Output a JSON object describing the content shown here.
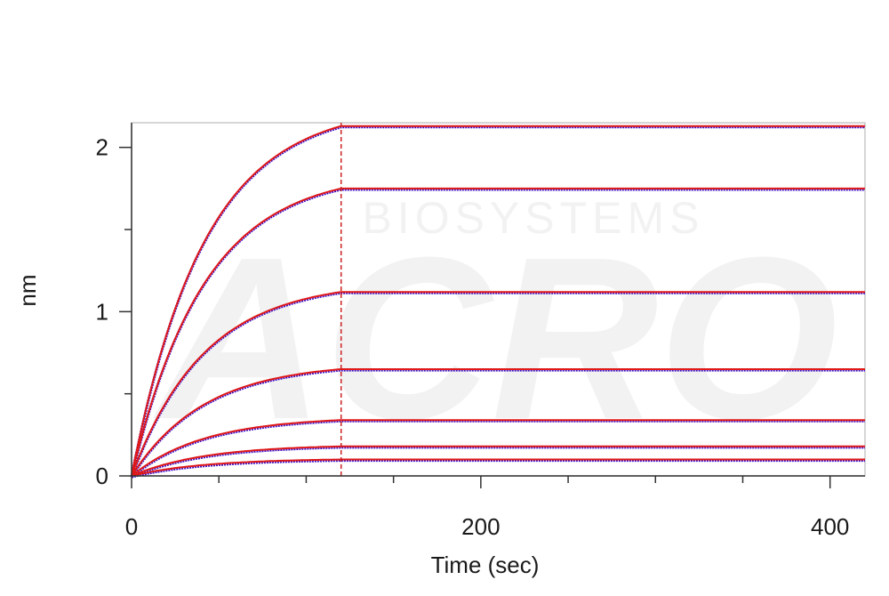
{
  "chart_data": {
    "type": "line",
    "title": "",
    "xlabel": "Time (sec)",
    "ylabel": "nm",
    "xlim": [
      0,
      420
    ],
    "ylim": [
      0,
      2.15
    ],
    "x_ticks": [
      0,
      200,
      400
    ],
    "y_ticks": [
      0,
      1,
      2
    ],
    "x_minor_step": 50,
    "y_minor_step": 0.5,
    "dissociation_start": 120,
    "grid": false,
    "legend": "none",
    "colors": {
      "data": "#3a10c8",
      "fit": "#e01818",
      "marker": "#cc2222",
      "axis": "#333333",
      "frame": "#c8c8c8"
    },
    "watermark": {
      "text": "ACRO",
      "subtext": "BIOSYSTEMS",
      "color": "#f2f2f2"
    },
    "association_rate": 0.024,
    "series": [
      {
        "plateau": 2.13
      },
      {
        "plateau": 1.75
      },
      {
        "plateau": 1.12
      },
      {
        "plateau": 0.65
      },
      {
        "plateau": 0.34
      },
      {
        "plateau": 0.18
      },
      {
        "plateau": 0.1
      }
    ]
  }
}
